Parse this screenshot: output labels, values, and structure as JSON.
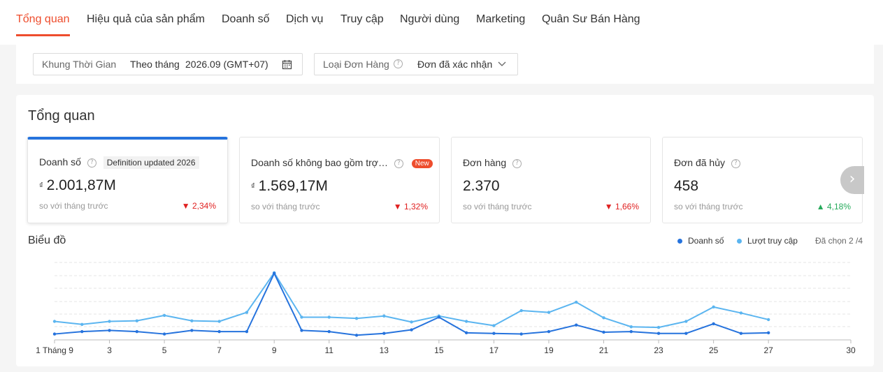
{
  "nav": {
    "tabs": [
      {
        "label": "Tổng quan",
        "active": true
      },
      {
        "label": "Hiệu quả của sản phẩm"
      },
      {
        "label": "Doanh số"
      },
      {
        "label": "Dịch vụ"
      },
      {
        "label": "Truy cập"
      },
      {
        "label": "Người dùng"
      },
      {
        "label": "Marketing"
      },
      {
        "label": "Quân Sư Bán Hàng"
      }
    ]
  },
  "filters": {
    "time": {
      "label": "Khung Thời Gian",
      "mode": "Theo tháng",
      "value": "2026.09 (GMT+07)",
      "icon": "calendar-icon"
    },
    "order_type": {
      "label": "Loại Đơn Hàng",
      "value": "Đơn đã xác nhận",
      "help": "?",
      "icon": "chevron-down-icon"
    }
  },
  "overview": {
    "title": "Tổng quan",
    "help": "?",
    "compare_label": "so với tháng trước",
    "currency": "₫",
    "metrics": [
      {
        "title": "Doanh số",
        "badge": "Definition updated 2026",
        "value": "2.001,87M",
        "change": "2,34%",
        "direction": "down",
        "arrow": "▼",
        "selected": true
      },
      {
        "title": "Doanh số không bao gồm trợ…",
        "badge_new": "New",
        "value": "1.569,17M",
        "change": "1,32%",
        "direction": "down",
        "arrow": "▼"
      },
      {
        "title": "Đơn hàng",
        "value": "2.370",
        "change": "1,66%",
        "direction": "down",
        "arrow": "▼"
      },
      {
        "title": "Đơn đã hủy",
        "value": "458",
        "change": "4,18%",
        "direction": "up",
        "arrow": "▲"
      }
    ],
    "next_icon": "chevron-right-icon",
    "next_glyph": "›"
  },
  "chart_section": {
    "title": "Biểu đồ",
    "selected_label": "Đã chọn 2 /4"
  },
  "colors": {
    "accent": "#ee4d2d",
    "series_sales": "#2673dd",
    "series_visits": "#5bb5f0"
  },
  "chart_data": {
    "type": "line",
    "x": [
      1,
      2,
      3,
      4,
      5,
      6,
      7,
      8,
      9,
      10,
      11,
      12,
      13,
      14,
      15,
      16,
      17,
      18,
      19,
      20,
      21,
      22,
      23,
      24,
      25,
      26,
      27
    ],
    "xlim": [
      1,
      30
    ],
    "xticks": [
      1,
      3,
      5,
      7,
      9,
      11,
      13,
      15,
      17,
      19,
      21,
      23,
      25,
      27,
      30
    ],
    "xtick_labels": [
      "1 Tháng 9",
      "3",
      "5",
      "7",
      "9",
      "11",
      "13",
      "15",
      "17",
      "19",
      "21",
      "23",
      "25",
      "27",
      "30"
    ],
    "y_axis_labels_shown": false,
    "grid": true,
    "legend_position": "top-right",
    "series": [
      {
        "name": "Doanh số",
        "color": "#2673dd",
        "values": [
          4,
          8,
          10,
          8,
          4,
          10,
          8,
          8,
          105,
          10,
          8,
          2,
          5,
          11,
          32,
          6,
          5,
          4,
          8,
          19,
          7,
          8,
          5,
          5,
          21,
          5,
          6
        ]
      },
      {
        "name": "Lượt truy cập",
        "color": "#5bb5f0",
        "values": [
          25,
          20,
          25,
          26,
          35,
          26,
          25,
          40,
          106,
          32,
          32,
          30,
          34,
          24,
          34,
          25,
          18,
          43,
          40,
          57,
          31,
          16,
          15,
          25,
          49,
          39,
          28
        ]
      }
    ]
  }
}
